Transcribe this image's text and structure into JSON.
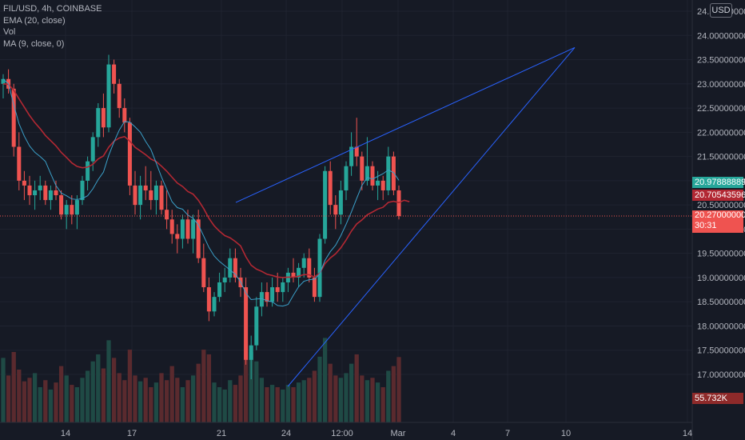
{
  "legend": {
    "symbol": "FIL/USD, 4h, COINBASE",
    "ema": "EMA (20, close)",
    "vol": "Vol",
    "ma": "MA (9, close, 0)"
  },
  "currency": "USD",
  "price_tags": {
    "teal": "20.97888889",
    "ema": "20.70543596",
    "last": "20.27000000",
    "countdown": "30:31",
    "volume": "55.732K"
  },
  "colors": {
    "background": "#161a25",
    "up": "#26a69a",
    "down": "#ef5350",
    "ema": "#b22833",
    "ma": "#3ba0c9",
    "trendline": "#2962ff",
    "teal_tag": "#26a69a",
    "ema_tag": "#b22833",
    "last_tag": "#ef5350",
    "volume_tag": "#8e2a2a"
  },
  "chart_data": {
    "type": "candlestick",
    "symbol": "FIL/USD",
    "interval": "4h",
    "exchange": "COINBASE",
    "y_ticks": [
      "24.50000000",
      "24.00000000",
      "23.50000000",
      "23.00000000",
      "22.50000000",
      "22.00000000",
      "21.50000000",
      "21.00000000",
      "20.50000000",
      "20.00000000",
      "19.50000000",
      "19.00000000",
      "18.50000000",
      "18.00000000",
      "17.50000000",
      "17.00000000"
    ],
    "x_ticks": [
      "14",
      "17",
      "21",
      "24",
      "12:00",
      "Mar",
      "4",
      "7",
      "10",
      "14"
    ],
    "ylim": [
      16.6,
      24.6
    ],
    "last_price": 20.27,
    "ema_value": 20.70543596,
    "ma_value": 20.97888889,
    "volume_last": "55.732K",
    "candles": [
      {
        "o": 23.0,
        "h": 23.2,
        "l": 22.7,
        "c": 23.1
      },
      {
        "o": 23.1,
        "h": 23.3,
        "l": 22.8,
        "c": 22.9
      },
      {
        "o": 22.9,
        "h": 23.0,
        "l": 21.5,
        "c": 21.7
      },
      {
        "o": 21.7,
        "h": 22.0,
        "l": 20.8,
        "c": 21.0
      },
      {
        "o": 21.0,
        "h": 21.2,
        "l": 20.6,
        "c": 20.9
      },
      {
        "o": 20.9,
        "h": 21.1,
        "l": 20.5,
        "c": 20.7
      },
      {
        "o": 20.7,
        "h": 21.0,
        "l": 20.4,
        "c": 20.8
      },
      {
        "o": 20.8,
        "h": 21.1,
        "l": 20.6,
        "c": 20.9
      },
      {
        "o": 20.9,
        "h": 21.0,
        "l": 20.5,
        "c": 20.6
      },
      {
        "o": 20.6,
        "h": 20.9,
        "l": 20.4,
        "c": 20.8
      },
      {
        "o": 20.8,
        "h": 21.0,
        "l": 20.6,
        "c": 20.7
      },
      {
        "o": 20.7,
        "h": 20.8,
        "l": 20.2,
        "c": 20.3
      },
      {
        "o": 20.3,
        "h": 20.6,
        "l": 20.0,
        "c": 20.5
      },
      {
        "o": 20.5,
        "h": 20.7,
        "l": 20.1,
        "c": 20.3
      },
      {
        "o": 20.3,
        "h": 20.7,
        "l": 20.0,
        "c": 20.6
      },
      {
        "o": 20.6,
        "h": 21.1,
        "l": 20.5,
        "c": 21.0
      },
      {
        "o": 21.0,
        "h": 21.5,
        "l": 20.8,
        "c": 21.4
      },
      {
        "o": 21.4,
        "h": 22.0,
        "l": 21.2,
        "c": 21.9
      },
      {
        "o": 21.9,
        "h": 22.6,
        "l": 21.7,
        "c": 22.5
      },
      {
        "o": 22.5,
        "h": 22.8,
        "l": 21.9,
        "c": 22.1
      },
      {
        "o": 22.1,
        "h": 23.6,
        "l": 22.0,
        "c": 23.4
      },
      {
        "o": 23.4,
        "h": 23.5,
        "l": 22.8,
        "c": 23.0
      },
      {
        "o": 23.0,
        "h": 23.1,
        "l": 22.3,
        "c": 22.5
      },
      {
        "o": 22.5,
        "h": 22.7,
        "l": 22.0,
        "c": 22.2
      },
      {
        "o": 22.2,
        "h": 22.3,
        "l": 20.7,
        "c": 20.9
      },
      {
        "o": 20.9,
        "h": 21.2,
        "l": 20.3,
        "c": 20.5
      },
      {
        "o": 20.5,
        "h": 21.1,
        "l": 20.2,
        "c": 20.9
      },
      {
        "o": 20.9,
        "h": 21.3,
        "l": 20.6,
        "c": 20.8
      },
      {
        "o": 20.8,
        "h": 21.2,
        "l": 20.4,
        "c": 20.6
      },
      {
        "o": 20.6,
        "h": 21.0,
        "l": 20.3,
        "c": 20.9
      },
      {
        "o": 20.9,
        "h": 21.0,
        "l": 20.3,
        "c": 20.4
      },
      {
        "o": 20.4,
        "h": 20.8,
        "l": 20.0,
        "c": 20.2
      },
      {
        "o": 20.2,
        "h": 20.4,
        "l": 19.7,
        "c": 19.9
      },
      {
        "o": 19.9,
        "h": 20.1,
        "l": 19.5,
        "c": 19.8
      },
      {
        "o": 19.8,
        "h": 20.3,
        "l": 19.6,
        "c": 20.2
      },
      {
        "o": 20.2,
        "h": 20.4,
        "l": 19.7,
        "c": 19.8
      },
      {
        "o": 19.8,
        "h": 20.3,
        "l": 19.5,
        "c": 20.2
      },
      {
        "o": 20.2,
        "h": 20.4,
        "l": 19.3,
        "c": 19.4
      },
      {
        "o": 19.4,
        "h": 19.7,
        "l": 18.7,
        "c": 18.8
      },
      {
        "o": 18.8,
        "h": 19.0,
        "l": 18.1,
        "c": 18.3
      },
      {
        "o": 18.3,
        "h": 18.7,
        "l": 18.2,
        "c": 18.6
      },
      {
        "o": 18.6,
        "h": 19.1,
        "l": 18.5,
        "c": 18.9
      },
      {
        "o": 18.9,
        "h": 19.2,
        "l": 18.7,
        "c": 19.0
      },
      {
        "o": 19.0,
        "h": 19.6,
        "l": 18.9,
        "c": 19.4
      },
      {
        "o": 19.4,
        "h": 19.6,
        "l": 18.9,
        "c": 19.0
      },
      {
        "o": 19.0,
        "h": 19.2,
        "l": 18.6,
        "c": 18.8
      },
      {
        "o": 18.8,
        "h": 19.0,
        "l": 17.2,
        "c": 17.3
      },
      {
        "o": 17.3,
        "h": 17.8,
        "l": 16.9,
        "c": 17.6
      },
      {
        "o": 17.6,
        "h": 18.6,
        "l": 17.5,
        "c": 18.4
      },
      {
        "o": 18.4,
        "h": 18.9,
        "l": 18.2,
        "c": 18.7
      },
      {
        "o": 18.7,
        "h": 18.9,
        "l": 18.4,
        "c": 18.5
      },
      {
        "o": 18.5,
        "h": 19.0,
        "l": 18.4,
        "c": 18.8
      },
      {
        "o": 18.8,
        "h": 19.1,
        "l": 18.5,
        "c": 18.7
      },
      {
        "o": 18.7,
        "h": 19.0,
        "l": 18.5,
        "c": 18.9
      },
      {
        "o": 18.9,
        "h": 19.2,
        "l": 18.7,
        "c": 19.1
      },
      {
        "o": 19.1,
        "h": 19.4,
        "l": 18.9,
        "c": 19.0
      },
      {
        "o": 19.0,
        "h": 19.3,
        "l": 18.8,
        "c": 19.2
      },
      {
        "o": 19.2,
        "h": 19.5,
        "l": 19.0,
        "c": 19.4
      },
      {
        "o": 19.4,
        "h": 19.6,
        "l": 18.9,
        "c": 19.0
      },
      {
        "o": 19.0,
        "h": 19.2,
        "l": 18.5,
        "c": 18.6
      },
      {
        "o": 18.6,
        "h": 19.9,
        "l": 18.5,
        "c": 19.8
      },
      {
        "o": 19.8,
        "h": 21.3,
        "l": 19.7,
        "c": 21.2
      },
      {
        "o": 21.2,
        "h": 21.4,
        "l": 20.3,
        "c": 20.5
      },
      {
        "o": 20.5,
        "h": 20.7,
        "l": 20.0,
        "c": 20.3
      },
      {
        "o": 20.3,
        "h": 21.0,
        "l": 20.1,
        "c": 20.8
      },
      {
        "o": 20.8,
        "h": 21.4,
        "l": 20.6,
        "c": 21.3
      },
      {
        "o": 21.3,
        "h": 22.0,
        "l": 21.1,
        "c": 21.7
      },
      {
        "o": 21.7,
        "h": 22.3,
        "l": 21.3,
        "c": 21.5
      },
      {
        "o": 21.5,
        "h": 21.6,
        "l": 20.8,
        "c": 21.0
      },
      {
        "o": 21.0,
        "h": 21.9,
        "l": 20.9,
        "c": 21.3
      },
      {
        "o": 21.3,
        "h": 21.4,
        "l": 20.8,
        "c": 20.9
      },
      {
        "o": 20.9,
        "h": 21.2,
        "l": 20.6,
        "c": 21.0
      },
      {
        "o": 21.0,
        "h": 21.1,
        "l": 20.6,
        "c": 20.8
      },
      {
        "o": 20.8,
        "h": 21.7,
        "l": 20.7,
        "c": 21.5
      },
      {
        "o": 21.5,
        "h": 21.6,
        "l": 20.7,
        "c": 20.8
      },
      {
        "o": 20.8,
        "h": 20.9,
        "l": 20.2,
        "c": 20.27
      }
    ],
    "volume": [
      55,
      40,
      60,
      45,
      35,
      38,
      42,
      30,
      36,
      28,
      34,
      48,
      40,
      32,
      30,
      38,
      44,
      52,
      58,
      46,
      70,
      55,
      42,
      36,
      62,
      40,
      35,
      38,
      30,
      34,
      42,
      36,
      48,
      38,
      30,
      36,
      40,
      50,
      62,
      58,
      34,
      30,
      28,
      36,
      32,
      40,
      70,
      60,
      52,
      38,
      30,
      32,
      30,
      28,
      32,
      30,
      34,
      36,
      38,
      44,
      56,
      72,
      50,
      40,
      38,
      42,
      50,
      58,
      40,
      36,
      38,
      34,
      30,
      44,
      48,
      55.7
    ],
    "ema_start": 23.0,
    "ema_period": 20,
    "ma_period": 9,
    "trendlines": [
      {
        "name": "upper-trendline",
        "p1": {
          "bar": 46.5,
          "y": 17.0
        },
        "p2": {
          "bar": 113,
          "y": 23.75
        }
      },
      {
        "name": "lower-trendline",
        "p1": {
          "bar": 46.5,
          "y": 17.0
        },
        "p2": {
          "bar": 113,
          "y": 23.75
        }
      },
      {
        "name": "channel-top",
        "p1": {
          "bar": 36.5,
          "y": 20.45
        },
        "p2": {
          "bar": 113,
          "y": 23.75
        }
      }
    ]
  }
}
